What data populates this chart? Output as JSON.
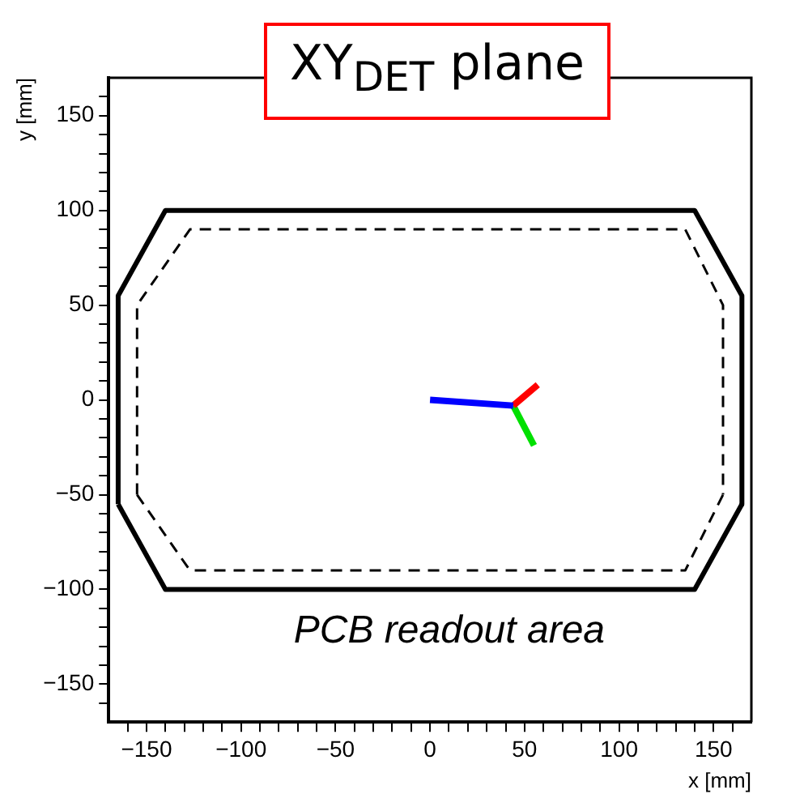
{
  "chart_data": {
    "type": "line",
    "title": "XY$_{DET}$ plane",
    "xlabel": "x [mm]",
    "ylabel": "y [mm]",
    "xlim": [
      -170,
      170
    ],
    "ylim": [
      -170,
      170
    ],
    "xticks": [
      {
        "value": -160,
        "label": null
      },
      -150,
      {
        "value": -140,
        "label": null
      },
      {
        "value": -130,
        "label": null
      },
      {
        "value": -120,
        "label": null
      },
      {
        "value": -110,
        "label": null
      },
      -100,
      {
        "value": -90,
        "label": null
      },
      {
        "value": -80,
        "label": null
      },
      {
        "value": -70,
        "label": null
      },
      {
        "value": -60,
        "label": null
      },
      -50,
      {
        "value": -40,
        "label": null
      },
      {
        "value": -30,
        "label": null
      },
      {
        "value": -20,
        "label": null
      },
      {
        "value": -10,
        "label": null
      },
      0,
      {
        "value": 10,
        "label": null
      },
      {
        "value": 20,
        "label": null
      },
      {
        "value": 30,
        "label": null
      },
      {
        "value": 40,
        "label": null
      },
      50,
      {
        "value": 60,
        "label": null
      },
      {
        "value": 70,
        "label": null
      },
      {
        "value": 80,
        "label": null
      },
      {
        "value": 90,
        "label": null
      },
      100,
      {
        "value": 110,
        "label": null
      },
      {
        "value": 120,
        "label": null
      },
      {
        "value": 130,
        "label": null
      },
      {
        "value": 140,
        "label": null
      },
      150,
      {
        "value": 160,
        "label": null
      }
    ],
    "yticks": [
      {
        "value": -160,
        "label": null
      },
      -150,
      {
        "value": -140,
        "label": null
      },
      {
        "value": -130,
        "label": null
      },
      {
        "value": -120,
        "label": null
      },
      {
        "value": -110,
        "label": null
      },
      -100,
      {
        "value": -90,
        "label": null
      },
      {
        "value": -80,
        "label": null
      },
      {
        "value": -70,
        "label": null
      },
      {
        "value": -60,
        "label": null
      },
      -50,
      {
        "value": -40,
        "label": null
      },
      {
        "value": -30,
        "label": null
      },
      {
        "value": -20,
        "label": null
      },
      {
        "value": -10,
        "label": null
      },
      0,
      {
        "value": 10,
        "label": null
      },
      {
        "value": 20,
        "label": null
      },
      {
        "value": 30,
        "label": null
      },
      {
        "value": 40,
        "label": null
      },
      50,
      {
        "value": 60,
        "label": null
      },
      {
        "value": 70,
        "label": null
      },
      {
        "value": 80,
        "label": null
      },
      {
        "value": 90,
        "label": null
      },
      100,
      {
        "value": 110,
        "label": null
      },
      {
        "value": 120,
        "label": null
      },
      {
        "value": 130,
        "label": null
      },
      {
        "value": 140,
        "label": null
      },
      150,
      {
        "value": 160,
        "label": null
      }
    ],
    "grid": false,
    "legend": false,
    "marker": "none",
    "series": [
      {
        "color": "#000000",
        "line_style": "solid",
        "x": [
          -165,
          -165,
          -140,
          140,
          165,
          165
        ],
        "values": [
          -55,
          55,
          100,
          100,
          55,
          -55
        ]
      },
      {
        "color": "#000000",
        "line_style": "solid",
        "x": [
          -165,
          -140,
          140,
          165
        ],
        "values": [
          -55,
          -100,
          -100,
          -55
        ]
      },
      {
        "color": "#000000",
        "line_style": "dashed",
        "x": [
          -155,
          -155,
          -127,
          135,
          155,
          155
        ],
        "values": [
          -50,
          50,
          90,
          90,
          50,
          -50
        ]
      },
      {
        "color": "#000000",
        "line_style": "dashed",
        "x": [
          -155,
          -127,
          135,
          155
        ],
        "values": [
          -50,
          -90,
          -90,
          -50
        ]
      },
      {
        "color": "#0000ff",
        "line_style": "solid",
        "x": [
          0,
          44
        ],
        "values": [
          0,
          -3
        ]
      },
      {
        "color": "#ff0000",
        "line_style": "solid",
        "x": [
          44,
          57
        ],
        "values": [
          -3,
          8
        ]
      },
      {
        "color": "#00e000",
        "line_style": "solid",
        "x": [
          44,
          55
        ],
        "values": [
          -3,
          -24
        ]
      }
    ],
    "annotations": [
      "PCB readout area"
    ]
  }
}
